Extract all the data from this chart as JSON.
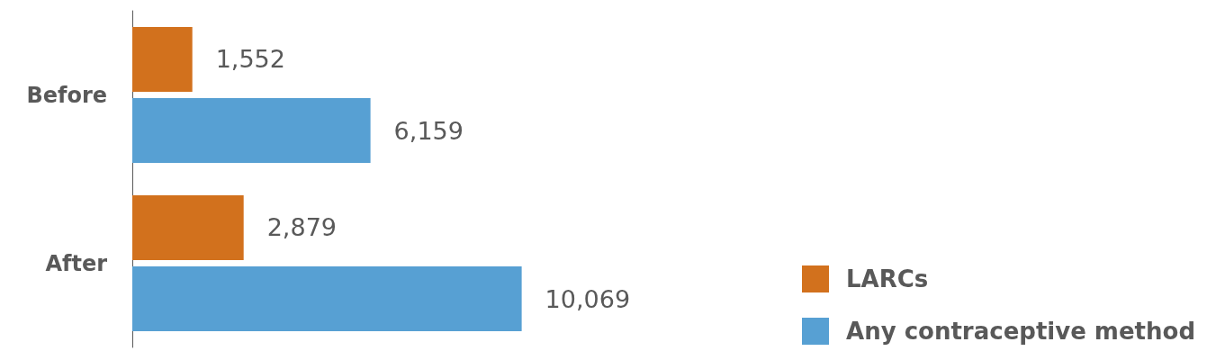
{
  "chart_data": {
    "type": "bar",
    "orientation": "horizontal",
    "categories": [
      "Before",
      "After"
    ],
    "series": [
      {
        "name": "LARCs",
        "color": "#d2711d",
        "values": [
          1552,
          2879
        ],
        "value_labels": [
          "1,552",
          "2,879"
        ]
      },
      {
        "name": "Any contraceptive method",
        "color": "#57a0d3",
        "values": [
          6159,
          10069
        ],
        "value_labels": [
          "6,159",
          "10,069"
        ]
      }
    ],
    "legend": "bottom right"
  }
}
